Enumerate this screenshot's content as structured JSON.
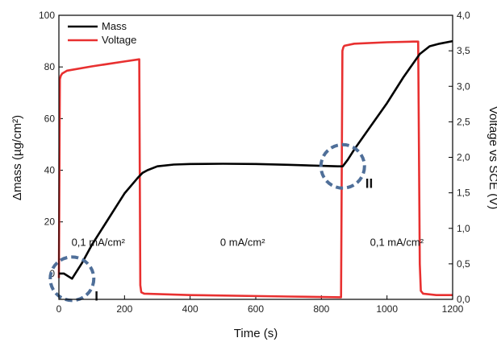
{
  "chart_data": {
    "type": "line",
    "xlabel": "Time (s)",
    "ylabel_left": "Δmass (µg/cm²)",
    "ylabel_right": "Voltage vs SCE (V)",
    "xlim": [
      0,
      1200
    ],
    "ylim_left": [
      -10,
      100
    ],
    "ylim_right": [
      0,
      4
    ],
    "x_ticks": [
      "0",
      "200",
      "400",
      "600",
      "800",
      "1000",
      "1200"
    ],
    "y_ticks_left": [
      "0",
      "20",
      "40",
      "60",
      "80",
      "100"
    ],
    "y_ticks_right": [
      "0,0",
      "0,5",
      "1,0",
      "1,5",
      "2,0",
      "2,5",
      "3,0",
      "3,5",
      "4,0"
    ],
    "legend_position": "top-left",
    "colors": {
      "mass": "#000000",
      "voltage": "#e83030",
      "marker": "#4f6f99"
    },
    "series": [
      {
        "name": "Mass",
        "axis": "left",
        "x": [
          0,
          15,
          40,
          70,
          100,
          150,
          200,
          240,
          255,
          270,
          300,
          350,
          400,
          500,
          600,
          700,
          800,
          850,
          865,
          880,
          900,
          950,
          1000,
          1050,
          1100,
          1130,
          1160,
          1200
        ],
        "values": [
          0,
          0,
          -2,
          4,
          11,
          21,
          31,
          37,
          39,
          40,
          41.5,
          42.2,
          42.4,
          42.5,
          42.4,
          42.1,
          41.7,
          41.5,
          41.5,
          44,
          48,
          57,
          66,
          76,
          85,
          88,
          89,
          90
        ]
      },
      {
        "name": "Voltage",
        "axis": "right",
        "x": [
          0,
          3,
          6,
          10,
          25,
          100,
          200,
          245,
          248,
          251,
          260,
          400,
          700,
          860,
          864,
          867,
          870,
          900,
          1000,
          1080,
          1095,
          1100,
          1103,
          1110,
          1150,
          1200
        ],
        "values": [
          0.3,
          3.1,
          3.15,
          3.18,
          3.22,
          3.28,
          3.35,
          3.38,
          0.2,
          0.1,
          0.08,
          0.06,
          0.04,
          0.03,
          3.5,
          3.55,
          3.57,
          3.6,
          3.62,
          3.63,
          3.63,
          0.5,
          0.12,
          0.08,
          0.06,
          0.06
        ]
      }
    ],
    "annotations": [
      {
        "text": "0,1 mA/cm²",
        "x": 120,
        "y": 12
      },
      {
        "text": "0 mA/cm²",
        "x": 560,
        "y": 12
      },
      {
        "text": "0,1 mA/cm²",
        "x": 1030,
        "y": 12
      }
    ],
    "highlights": [
      {
        "label": "I",
        "x": 40,
        "y": -2
      },
      {
        "label": "II",
        "x": 865,
        "y": 41.5
      }
    ]
  }
}
